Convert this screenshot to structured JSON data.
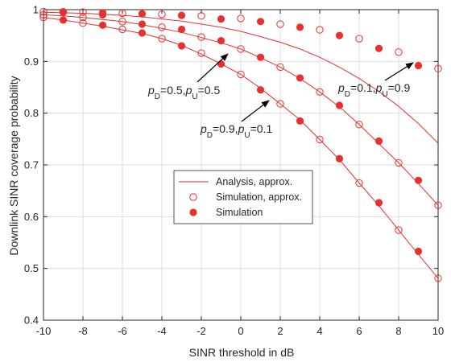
{
  "chart_data": {
    "type": "line",
    "xlabel": "SINR threshold in dB",
    "ylabel": "Downlink SINR coverage probability",
    "xlim": [
      -10,
      10
    ],
    "ylim": [
      0.4,
      1.0
    ],
    "xticks": [
      -10,
      -8,
      -6,
      -4,
      -2,
      0,
      2,
      4,
      6,
      8,
      10
    ],
    "yticks": [
      0.4,
      0.5,
      0.6,
      0.7,
      0.8,
      0.9,
      1.0
    ],
    "grid": true,
    "legend_position": "center",
    "colors": {
      "series": "#e8302f",
      "axis": "#262626",
      "grid": "#dedede"
    },
    "legend": [
      {
        "label": "Analysis, approx.",
        "marker": "line"
      },
      {
        "label": "Simulation, approx.",
        "marker": "open-circle"
      },
      {
        "label": "Simulation",
        "marker": "filled-circle"
      }
    ],
    "curves": [
      {
        "annotation": {
          "p": "p",
          "d": "D",
          "dval": "=0.1,",
          "u": "U",
          "uval": "=0.9"
        },
        "approx_x": [
          -10,
          -9,
          -8,
          -7,
          -6,
          -5,
          -4,
          -3,
          -2,
          -1,
          0,
          1,
          2,
          3,
          4,
          5,
          6,
          7,
          8,
          9,
          10
        ],
        "approx_y": [
          0.995,
          0.994,
          0.993,
          0.991,
          0.989,
          0.986,
          0.982,
          0.978,
          0.972,
          0.966,
          0.958,
          0.948,
          0.937,
          0.924,
          0.908,
          0.889,
          0.867,
          0.842,
          0.813,
          0.78,
          0.742
        ],
        "sim_approx_x": [
          -10,
          -8,
          -6,
          -4,
          -2,
          0,
          2,
          4,
          6,
          8,
          10
        ],
        "sim_approx_y": [
          0.996,
          0.995,
          0.993,
          0.991,
          0.988,
          0.983,
          0.972,
          0.961,
          0.944,
          0.918,
          0.886
        ],
        "sim_x": [
          -9,
          -7,
          -5,
          -3,
          -1,
          1,
          3,
          5,
          7,
          9
        ],
        "sim_y": [
          0.996,
          0.994,
          0.992,
          0.989,
          0.982,
          0.977,
          0.966,
          0.95,
          0.925,
          0.892
        ]
      },
      {
        "annotation": {
          "p": "p",
          "d": "D",
          "dval": "=0.5,",
          "u": "U",
          "uval": "=0.5"
        },
        "approx_x": [
          -10,
          -9,
          -8,
          -7,
          -6,
          -5,
          -4,
          -3,
          -2,
          -1,
          0,
          1,
          2,
          3,
          4,
          5,
          6,
          7,
          8,
          9,
          10
        ],
        "approx_y": [
          0.99,
          0.988,
          0.985,
          0.981,
          0.977,
          0.971,
          0.964,
          0.956,
          0.946,
          0.936,
          0.924,
          0.907,
          0.889,
          0.867,
          0.841,
          0.812,
          0.778,
          0.741,
          0.704,
          0.664,
          0.622
        ],
        "sim_approx_x": [
          -10,
          -8,
          -6,
          -4,
          -2,
          0,
          2,
          4,
          6,
          8,
          10
        ],
        "sim_approx_y": [
          0.99,
          0.985,
          0.977,
          0.966,
          0.947,
          0.924,
          0.889,
          0.841,
          0.778,
          0.704,
          0.622
        ],
        "sim_x": [
          -9,
          -7,
          -5,
          -3,
          -1,
          1,
          3,
          5,
          7,
          9
        ],
        "sim_y": [
          0.995,
          0.99,
          0.972,
          0.962,
          0.94,
          0.908,
          0.868,
          0.815,
          0.746,
          0.67
        ]
      },
      {
        "annotation": {
          "p": "p",
          "d": "D",
          "dval": "=0.9,",
          "u": "U",
          "uval": "=0.1"
        },
        "approx_x": [
          -10,
          -9,
          -8,
          -7,
          -6,
          -5,
          -4,
          -3,
          -2,
          -1,
          0,
          1,
          2,
          3,
          4,
          5,
          6,
          7,
          8,
          9,
          10
        ],
        "approx_y": [
          0.985,
          0.98,
          0.974,
          0.968,
          0.961,
          0.954,
          0.944,
          0.931,
          0.914,
          0.895,
          0.875,
          0.848,
          0.818,
          0.787,
          0.749,
          0.71,
          0.665,
          0.621,
          0.574,
          0.527,
          0.481
        ],
        "sim_approx_x": [
          -10,
          -8,
          -6,
          -4,
          -2,
          0,
          2,
          4,
          6,
          8,
          10
        ],
        "sim_approx_y": [
          0.985,
          0.974,
          0.962,
          0.944,
          0.916,
          0.875,
          0.818,
          0.749,
          0.665,
          0.574,
          0.481
        ],
        "sim_x": [
          -9,
          -7,
          -5,
          -3,
          -1,
          1,
          3,
          5,
          7,
          9
        ],
        "sim_y": [
          0.98,
          0.97,
          0.955,
          0.93,
          0.895,
          0.845,
          0.785,
          0.712,
          0.627,
          0.533
        ]
      }
    ]
  }
}
